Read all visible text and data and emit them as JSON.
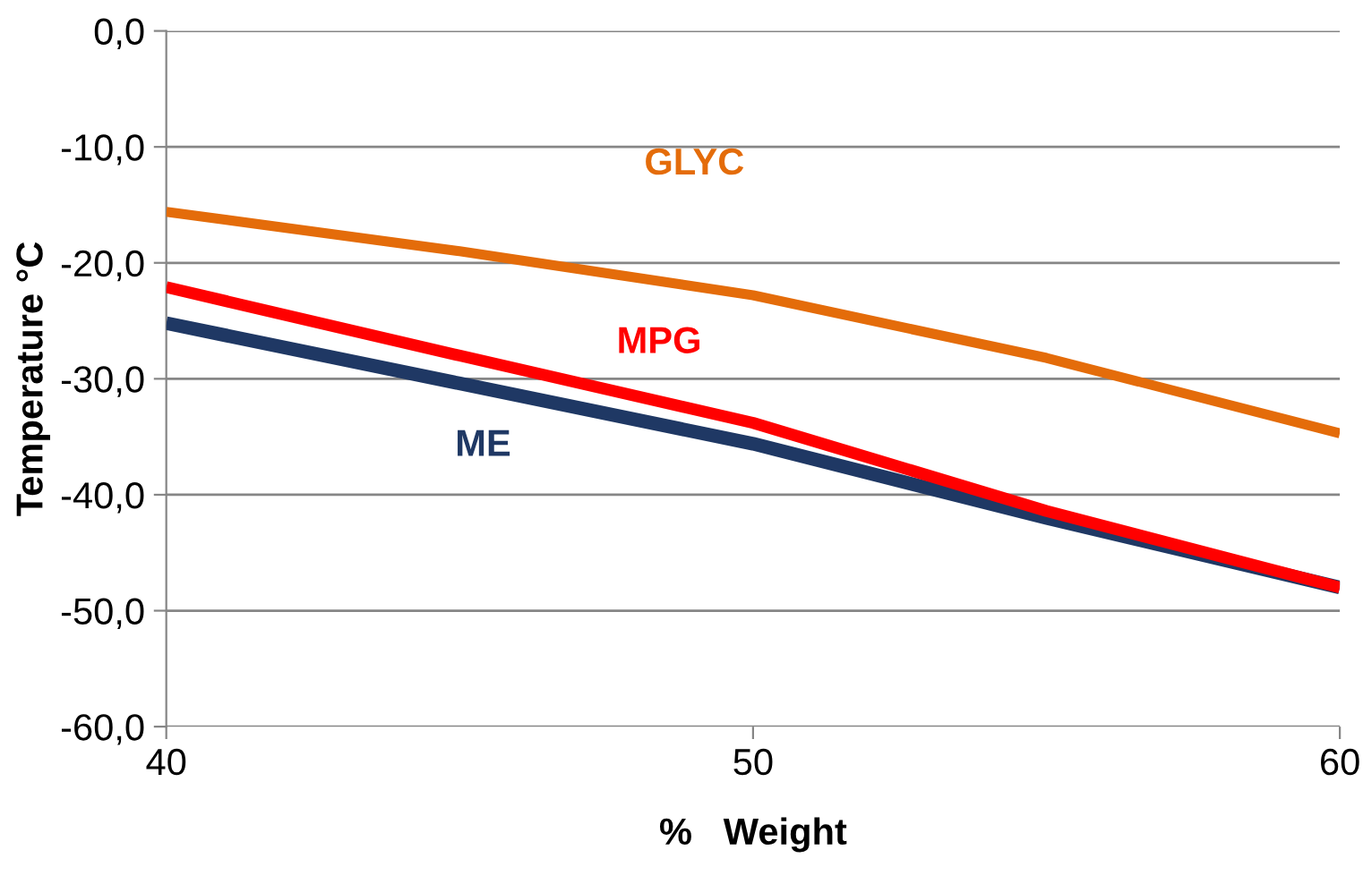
{
  "chart_data": {
    "type": "line",
    "xlabel": "%   Weight",
    "ylabel": "Temperature °C",
    "x": [
      40,
      45,
      50,
      55,
      60
    ],
    "series": [
      {
        "name": "GLYC",
        "color": "#e46c0a",
        "values": [
          -15.6,
          -19.0,
          -22.8,
          -28.2,
          -34.7
        ]
      },
      {
        "name": "MPG",
        "color": "#ff0000",
        "values": [
          -22.1,
          -28.0,
          -33.8,
          -41.4,
          -48.0
        ]
      },
      {
        "name": "ME",
        "color": "#1f3864",
        "values": [
          -25.2,
          -30.4,
          -35.6,
          -42.0,
          -48.0
        ]
      }
    ],
    "xlim": [
      40,
      60
    ],
    "xticks": [
      40,
      50,
      60
    ],
    "ylim": [
      -60,
      0
    ],
    "yticks": [
      {
        "value": -60,
        "label": "-60,0"
      },
      {
        "value": -50,
        "label": "-50,0"
      },
      {
        "value": -40,
        "label": "-40,0"
      },
      {
        "value": -30,
        "label": "-30,0"
      },
      {
        "value": -20,
        "label": "-20,0"
      },
      {
        "value": -10,
        "label": "-10,0"
      },
      {
        "value": 0,
        "label": "0,0"
      }
    ],
    "grid": "y",
    "legend": false,
    "marker": "none",
    "line_style": "solid"
  }
}
